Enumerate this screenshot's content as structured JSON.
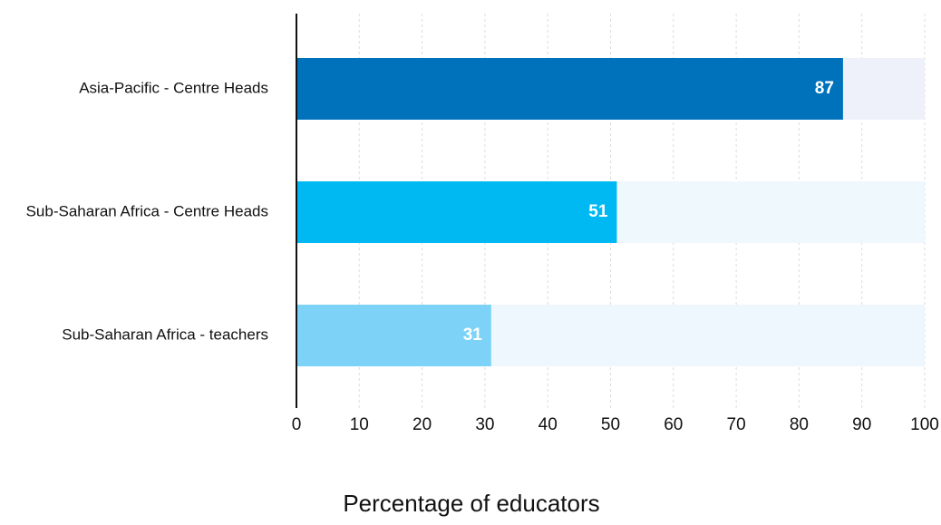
{
  "chart_data": {
    "type": "barh",
    "categories": [
      "Asia-Pacific - Centre Heads",
      "Sub-Saharan Africa - Centre Heads",
      "Sub-Saharan Africa - teachers"
    ],
    "values": [
      87,
      51,
      31
    ],
    "colors": [
      "#0072bc",
      "#00b9f2",
      "#7dd3f7"
    ],
    "track_colors": [
      "#eef1fa",
      "#eef8fd",
      "#eff7fe"
    ],
    "xlabel": "Percentage of educators",
    "xlim": [
      0,
      100
    ],
    "xticks": [
      0,
      10,
      20,
      30,
      40,
      50,
      60,
      70,
      80,
      90,
      100
    ],
    "grid": true
  }
}
